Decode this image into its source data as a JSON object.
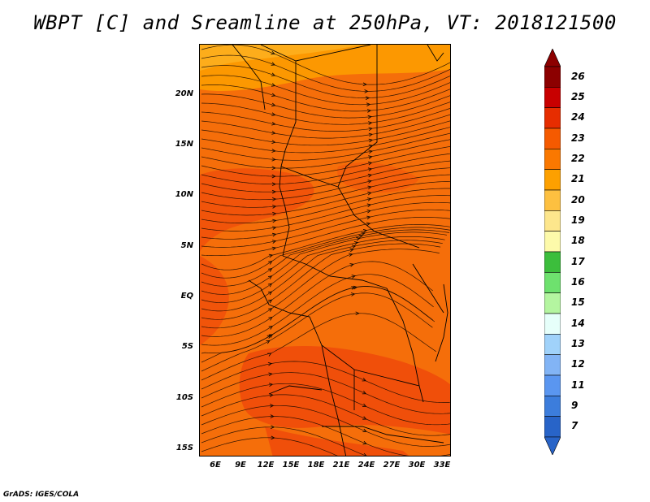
{
  "title": "WBPT [C] and Sreamline at 250hPa, VT: 2018121500",
  "credit": "GrADS: IGES/COLA",
  "map": {
    "lat_labels": [
      "20N",
      "15N",
      "10N",
      "5N",
      "EQ",
      "5S",
      "10S",
      "15S"
    ],
    "lon_labels": [
      "6E",
      "9E",
      "12E",
      "15E",
      "18E",
      "21E",
      "24E",
      "27E",
      "30E",
      "33E"
    ]
  },
  "colorbar": {
    "labels": [
      "26",
      "25",
      "24",
      "23",
      "22",
      "21",
      "20",
      "19",
      "18",
      "17",
      "16",
      "15",
      "14",
      "13",
      "12",
      "11",
      "9",
      "7"
    ],
    "colors": [
      "#8c0000",
      "#c80000",
      "#e62d00",
      "#f55a00",
      "#fa7800",
      "#fda000",
      "#fdc040",
      "#fde68c",
      "#fdfaaa",
      "#3cbe3c",
      "#6ee16e",
      "#b4f5a0",
      "#e6fffa",
      "#a0d2fa",
      "#82b4f5",
      "#5a96f0",
      "#3c7ddc",
      "#2864c8"
    ]
  }
}
